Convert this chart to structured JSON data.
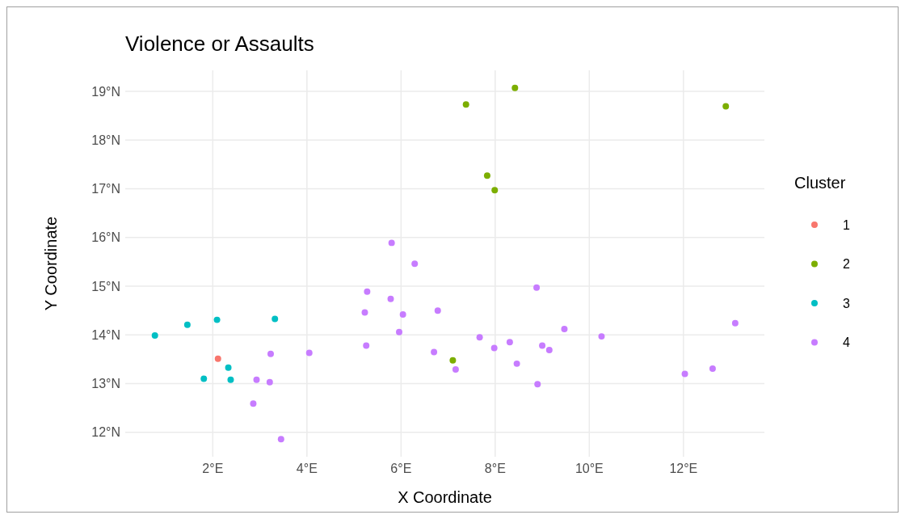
{
  "chart_data": {
    "type": "scatter",
    "title": "Violence or Assaults",
    "xlabel": "X Coordinate",
    "ylabel": "Y Coordinate",
    "legend_title": "Cluster",
    "legend": "right",
    "grid": true,
    "marker": "circle",
    "xlim": [
      0.14,
      13.72
    ],
    "ylim": [
      11.5,
      19.43
    ],
    "xticks": [
      {
        "value": 2,
        "label": "2°E"
      },
      {
        "value": 4,
        "label": "4°E"
      },
      {
        "value": 6,
        "label": "6°E"
      },
      {
        "value": 8,
        "label": "8°E"
      },
      {
        "value": 10,
        "label": "10°E"
      },
      {
        "value": 12,
        "label": "12°E"
      }
    ],
    "yticks": [
      {
        "value": 12,
        "label": "12°N"
      },
      {
        "value": 13,
        "label": "13°N"
      },
      {
        "value": 14,
        "label": "14°N"
      },
      {
        "value": 15,
        "label": "15°N"
      },
      {
        "value": 16,
        "label": "16°N"
      },
      {
        "value": 17,
        "label": "17°N"
      },
      {
        "value": 18,
        "label": "18°N"
      },
      {
        "value": 19,
        "label": "19°N"
      }
    ],
    "series": [
      {
        "name": "1",
        "color": "#f8766d",
        "x": [
          2.11
        ],
        "values": [
          13.51
        ]
      },
      {
        "name": "2",
        "color": "#7cae00",
        "x": [
          7.38,
          8.42,
          12.9,
          7.83,
          7.99,
          7.1
        ],
        "values": [
          18.73,
          19.07,
          18.69,
          17.27,
          16.97,
          13.48
        ]
      },
      {
        "name": "3",
        "color": "#00bfc4",
        "x": [
          0.77,
          1.46,
          2.09,
          3.32,
          1.81,
          2.33,
          2.38
        ],
        "values": [
          13.99,
          14.21,
          14.31,
          14.33,
          13.1,
          13.33,
          13.08
        ]
      },
      {
        "name": "4",
        "color": "#c77cff",
        "x": [
          5.8,
          6.29,
          5.28,
          5.78,
          5.23,
          6.04,
          6.78,
          5.96,
          5.26,
          6.7,
          7.16,
          3.23,
          4.05,
          2.93,
          3.21,
          2.86,
          3.45,
          8.88,
          9.47,
          10.26,
          13.1,
          7.67,
          7.98,
          8.31,
          9.0,
          9.15,
          8.46,
          8.9,
          12.03,
          12.62
        ],
        "values": [
          15.89,
          15.46,
          14.89,
          14.74,
          14.46,
          14.42,
          14.5,
          14.06,
          13.78,
          13.65,
          13.29,
          13.61,
          13.63,
          13.08,
          13.03,
          12.59,
          11.86,
          14.97,
          14.12,
          13.97,
          14.24,
          13.95,
          13.73,
          13.85,
          13.78,
          13.69,
          13.41,
          12.99,
          13.2,
          13.31
        ]
      }
    ]
  }
}
